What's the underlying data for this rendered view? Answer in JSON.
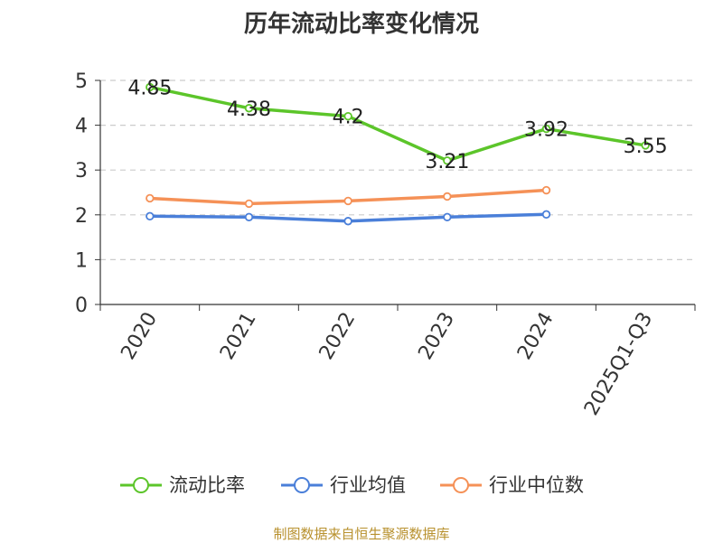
{
  "chart_data": {
    "type": "line",
    "title": "历年流动比率变化情况",
    "categories": [
      "2020",
      "2021",
      "2022",
      "2023",
      "2024",
      "2025Q1-Q3"
    ],
    "ylim": [
      0,
      5
    ],
    "yticks": [
      "0",
      "1",
      "2",
      "3",
      "4",
      "5"
    ],
    "grid": "horizontal dashed",
    "legend_position": "bottom",
    "series": [
      {
        "name": "流动比率",
        "color": "#5cc52a",
        "values": [
          4.85,
          4.38,
          4.2,
          3.21,
          3.92,
          3.55
        ],
        "data_labels": [
          "4.85",
          "4.38",
          "4.2",
          "3.21",
          "3.92",
          "3.55"
        ]
      },
      {
        "name": "行业均值",
        "color": "#4a7fd9",
        "values": [
          1.97,
          1.95,
          1.86,
          1.95,
          2.01,
          null
        ]
      },
      {
        "name": "行业中位数",
        "color": "#f59157",
        "values": [
          2.37,
          2.25,
          2.31,
          2.41,
          2.55,
          null
        ]
      }
    ]
  },
  "footer": {
    "source": "制图数据来自恒生聚源数据库"
  }
}
